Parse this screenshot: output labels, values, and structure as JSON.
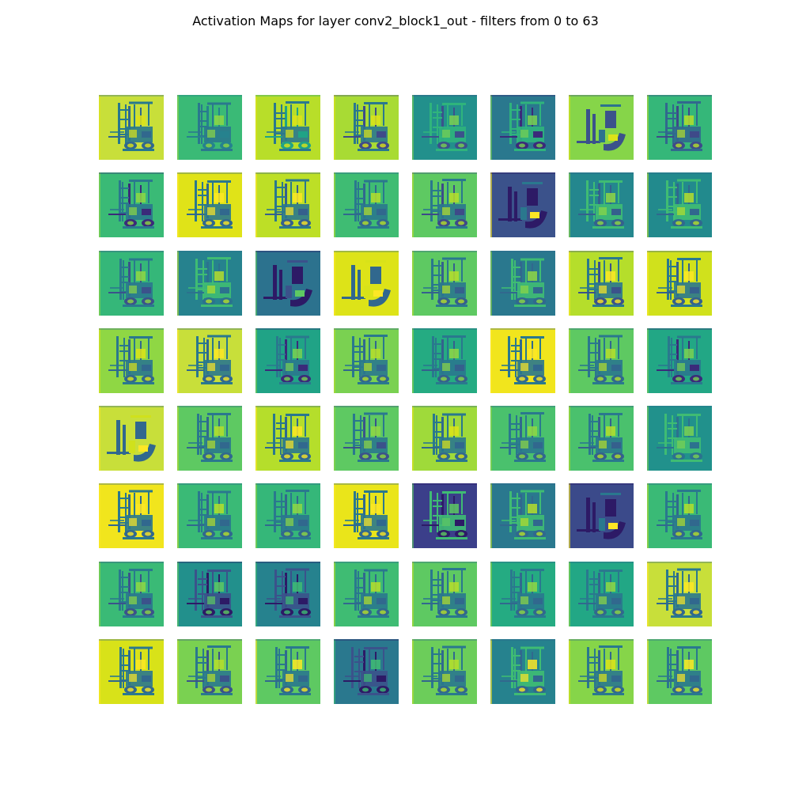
{
  "chart_data": {
    "type": "heatmap",
    "title": "Activation Maps for layer conv2_block1_out - filters from 0 to 63",
    "layer": "conv2_block1_out",
    "filter_range": [
      0,
      63
    ],
    "grid": {
      "rows": 8,
      "cols": 8
    },
    "colormap": "viridis",
    "axes_visible": false,
    "tiles": [
      {
        "filter": 0,
        "bg": "#c8df3a",
        "fg": "#27788e",
        "dark": "#31688e",
        "light": "#dde318",
        "mode": "normal"
      },
      {
        "filter": 1,
        "bg": "#3aba76",
        "fg": "#2a788e",
        "dark": "#26828e",
        "light": "#8fd744",
        "mode": "normal"
      },
      {
        "filter": 2,
        "bg": "#b8de29",
        "fg": "#2a788e",
        "dark": "#20a386",
        "light": "#dde318",
        "mode": "normal"
      },
      {
        "filter": 3,
        "bg": "#a8db34",
        "fg": "#2a788e",
        "dark": "#3f4a8a",
        "light": "#dde318",
        "mode": "normal"
      },
      {
        "filter": 4,
        "bg": "#22908c",
        "fg": "#2fb47c",
        "dark": "#3b528b",
        "light": "#7ad151",
        "mode": "normal"
      },
      {
        "filter": 5,
        "bg": "#2a788e",
        "fg": "#2fb47c",
        "dark": "#3b2a7a",
        "light": "#7ad151",
        "mode": "normal"
      },
      {
        "filter": 6,
        "bg": "#86d549",
        "fg": "#2c728e",
        "dark": "#3b528b",
        "light": "#dde318",
        "mode": "forks"
      },
      {
        "filter": 7,
        "bg": "#35b779",
        "fg": "#31688e",
        "dark": "#3e4a89",
        "light": "#b5de2b",
        "mode": "normal"
      },
      {
        "filter": 8,
        "bg": "#3aba76",
        "fg": "#2a788e",
        "dark": "#3b2a7a",
        "light": "#8fd744",
        "mode": "normal"
      },
      {
        "filter": 9,
        "bg": "#e0e318",
        "fg": "#2a788e",
        "dark": "#31688e",
        "light": "#fde725",
        "mode": "normal"
      },
      {
        "filter": 10,
        "bg": "#bddf26",
        "fg": "#2a788e",
        "dark": "#35608d",
        "light": "#fde725",
        "mode": "normal"
      },
      {
        "filter": 11,
        "bg": "#3fbc73",
        "fg": "#2a788e",
        "dark": "#31688e",
        "light": "#b5de2b",
        "mode": "normal"
      },
      {
        "filter": 12,
        "bg": "#5ec962",
        "fg": "#2a788e",
        "dark": "#3e4a89",
        "light": "#b5de2b",
        "mode": "normal"
      },
      {
        "filter": 13,
        "bg": "#3b528b",
        "fg": "#2a788e",
        "dark": "#2d1a66",
        "light": "#fde725",
        "mode": "forks"
      },
      {
        "filter": 14,
        "bg": "#24878e",
        "fg": "#3fbc73",
        "dark": "#35608d",
        "light": "#8fd744",
        "mode": "normal"
      },
      {
        "filter": 15,
        "bg": "#228a8d",
        "fg": "#3fbc73",
        "dark": "#31688e",
        "light": "#b5de2b",
        "mode": "normal"
      },
      {
        "filter": 16,
        "bg": "#35b779",
        "fg": "#2a788e",
        "dark": "#3b528b",
        "light": "#8fd744",
        "mode": "normal"
      },
      {
        "filter": 17,
        "bg": "#26828e",
        "fg": "#3fbc73",
        "dark": "#2c728e",
        "light": "#b5de2b",
        "mode": "normal"
      },
      {
        "filter": 18,
        "bg": "#2c728e",
        "fg": "#3b528b",
        "dark": "#2d1a66",
        "light": "#5ec962",
        "mode": "forks"
      },
      {
        "filter": 19,
        "bg": "#dde318",
        "fg": "#d8e219",
        "dark": "#31688e",
        "light": "#fde725",
        "mode": "forks"
      },
      {
        "filter": 20,
        "bg": "#5ec962",
        "fg": "#2a788e",
        "dark": "#35608d",
        "light": "#b5de2b",
        "mode": "normal"
      },
      {
        "filter": 21,
        "bg": "#2a788e",
        "fg": "#3fbc73",
        "dark": "#31688e",
        "light": "#8fd744",
        "mode": "normal"
      },
      {
        "filter": 22,
        "bg": "#b5de2b",
        "fg": "#2a788e",
        "dark": "#3b528b",
        "light": "#fde725",
        "mode": "normal"
      },
      {
        "filter": 23,
        "bg": "#d0e11c",
        "fg": "#2a788e",
        "dark": "#35608d",
        "light": "#fde725",
        "mode": "normal"
      },
      {
        "filter": 24,
        "bg": "#8fd744",
        "fg": "#2a788e",
        "dark": "#31688e",
        "light": "#dde318",
        "mode": "normal"
      },
      {
        "filter": 25,
        "bg": "#c8df3a",
        "fg": "#2a788e",
        "dark": "#31688e",
        "light": "#fde725",
        "mode": "normal"
      },
      {
        "filter": 26,
        "bg": "#20a386",
        "fg": "#2a788e",
        "dark": "#3b2a7a",
        "light": "#7ad151",
        "mode": "normal"
      },
      {
        "filter": 27,
        "bg": "#7ad151",
        "fg": "#2a788e",
        "dark": "#31688e",
        "light": "#b5de2b",
        "mode": "normal"
      },
      {
        "filter": 28,
        "bg": "#25ab82",
        "fg": "#2a788e",
        "dark": "#35608d",
        "light": "#8fd744",
        "mode": "normal"
      },
      {
        "filter": 29,
        "bg": "#f1e51d",
        "fg": "#2a788e",
        "dark": "#31688e",
        "light": "#fde725",
        "mode": "normal"
      },
      {
        "filter": 30,
        "bg": "#5ec962",
        "fg": "#2a788e",
        "dark": "#31688e",
        "light": "#b5de2b",
        "mode": "normal"
      },
      {
        "filter": 31,
        "bg": "#22a785",
        "fg": "#2a788e",
        "dark": "#3b2a7a",
        "light": "#7ad151",
        "mode": "normal"
      },
      {
        "filter": 32,
        "bg": "#c8df3a",
        "fg": "#d0e11c",
        "dark": "#31688e",
        "light": "#fde725",
        "mode": "forks"
      },
      {
        "filter": 33,
        "bg": "#5ec962",
        "fg": "#2a788e",
        "dark": "#31688e",
        "light": "#b5de2b",
        "mode": "normal"
      },
      {
        "filter": 34,
        "bg": "#b5de2b",
        "fg": "#2a788e",
        "dark": "#31688e",
        "light": "#fde725",
        "mode": "normal"
      },
      {
        "filter": 35,
        "bg": "#5ec962",
        "fg": "#2a788e",
        "dark": "#3b528b",
        "light": "#8fd744",
        "mode": "normal"
      },
      {
        "filter": 36,
        "bg": "#9fda3a",
        "fg": "#2a788e",
        "dark": "#31688e",
        "light": "#dde318",
        "mode": "normal"
      },
      {
        "filter": 37,
        "bg": "#4ac16d",
        "fg": "#2a788e",
        "dark": "#31688e",
        "light": "#8fd744",
        "mode": "normal"
      },
      {
        "filter": 38,
        "bg": "#4ac16d",
        "fg": "#2a788e",
        "dark": "#35608d",
        "light": "#b5de2b",
        "mode": "normal"
      },
      {
        "filter": 39,
        "bg": "#21918c",
        "fg": "#3fbc73",
        "dark": "#2c728e",
        "light": "#7ad151",
        "mode": "normal"
      },
      {
        "filter": 40,
        "bg": "#f1e51d",
        "fg": "#2a788e",
        "dark": "#31688e",
        "light": "#fde725",
        "mode": "normal"
      },
      {
        "filter": 41,
        "bg": "#3aba76",
        "fg": "#2a788e",
        "dark": "#31688e",
        "light": "#b5de2b",
        "mode": "normal"
      },
      {
        "filter": 42,
        "bg": "#35b779",
        "fg": "#2a788e",
        "dark": "#31688e",
        "light": "#8fd744",
        "mode": "normal"
      },
      {
        "filter": 43,
        "bg": "#eae51a",
        "fg": "#2a788e",
        "dark": "#31688e",
        "light": "#fde725",
        "mode": "normal"
      },
      {
        "filter": 44,
        "bg": "#3b3f8a",
        "fg": "#3fbc73",
        "dark": "#2d1a66",
        "light": "#5ec962",
        "mode": "normal"
      },
      {
        "filter": 45,
        "bg": "#2a788e",
        "fg": "#3fbc73",
        "dark": "#31688e",
        "light": "#b5de2b",
        "mode": "normal"
      },
      {
        "filter": 46,
        "bg": "#3b4a8a",
        "fg": "#2a788e",
        "dark": "#2d1a66",
        "light": "#fde725",
        "mode": "forks"
      },
      {
        "filter": 47,
        "bg": "#3aba76",
        "fg": "#2a788e",
        "dark": "#31688e",
        "light": "#b5de2b",
        "mode": "normal"
      },
      {
        "filter": 48,
        "bg": "#3aba76",
        "fg": "#2a788e",
        "dark": "#3b528b",
        "light": "#8fd744",
        "mode": "normal"
      },
      {
        "filter": 49,
        "bg": "#22908c",
        "fg": "#3b528b",
        "dark": "#2d1a66",
        "light": "#5ec962",
        "mode": "normal"
      },
      {
        "filter": 50,
        "bg": "#26828e",
        "fg": "#3b528b",
        "dark": "#2d1a66",
        "light": "#3fbc73",
        "mode": "normal"
      },
      {
        "filter": 51,
        "bg": "#3fbc73",
        "fg": "#2a788e",
        "dark": "#31688e",
        "light": "#b5de2b",
        "mode": "normal"
      },
      {
        "filter": 52,
        "bg": "#5ec962",
        "fg": "#2a788e",
        "dark": "#31688e",
        "light": "#b5de2b",
        "mode": "normal"
      },
      {
        "filter": 53,
        "bg": "#25ab82",
        "fg": "#2a788e",
        "dark": "#31688e",
        "light": "#8fd744",
        "mode": "normal"
      },
      {
        "filter": 54,
        "bg": "#22a785",
        "fg": "#2a788e",
        "dark": "#31688e",
        "light": "#8fd744",
        "mode": "normal"
      },
      {
        "filter": 55,
        "bg": "#c8df3a",
        "fg": "#2a788e",
        "dark": "#31688e",
        "light": "#fde725",
        "mode": "normal"
      },
      {
        "filter": 56,
        "bg": "#d8e219",
        "fg": "#2a788e",
        "dark": "#31688e",
        "light": "#fde725",
        "mode": "normal"
      },
      {
        "filter": 57,
        "bg": "#7ad151",
        "fg": "#2a788e",
        "dark": "#3b528b",
        "light": "#b5de2b",
        "mode": "normal"
      },
      {
        "filter": 58,
        "bg": "#5ec962",
        "fg": "#2a788e",
        "dark": "#31688e",
        "light": "#fde725",
        "mode": "normal"
      },
      {
        "filter": 59,
        "bg": "#2a788e",
        "fg": "#3b528b",
        "dark": "#2d1a66",
        "light": "#3fbc73",
        "mode": "normal"
      },
      {
        "filter": 60,
        "bg": "#6ccd5a",
        "fg": "#2a788e",
        "dark": "#31688e",
        "light": "#b5de2b",
        "mode": "normal"
      },
      {
        "filter": 61,
        "bg": "#26828e",
        "fg": "#3fbc73",
        "dark": "#31688e",
        "light": "#fde725",
        "mode": "normal"
      },
      {
        "filter": 62,
        "bg": "#86d549",
        "fg": "#2a788e",
        "dark": "#31688e",
        "light": "#dde318",
        "mode": "normal"
      },
      {
        "filter": 63,
        "bg": "#5ec962",
        "fg": "#2a788e",
        "dark": "#31688e",
        "light": "#fde725",
        "mode": "normal"
      }
    ]
  }
}
